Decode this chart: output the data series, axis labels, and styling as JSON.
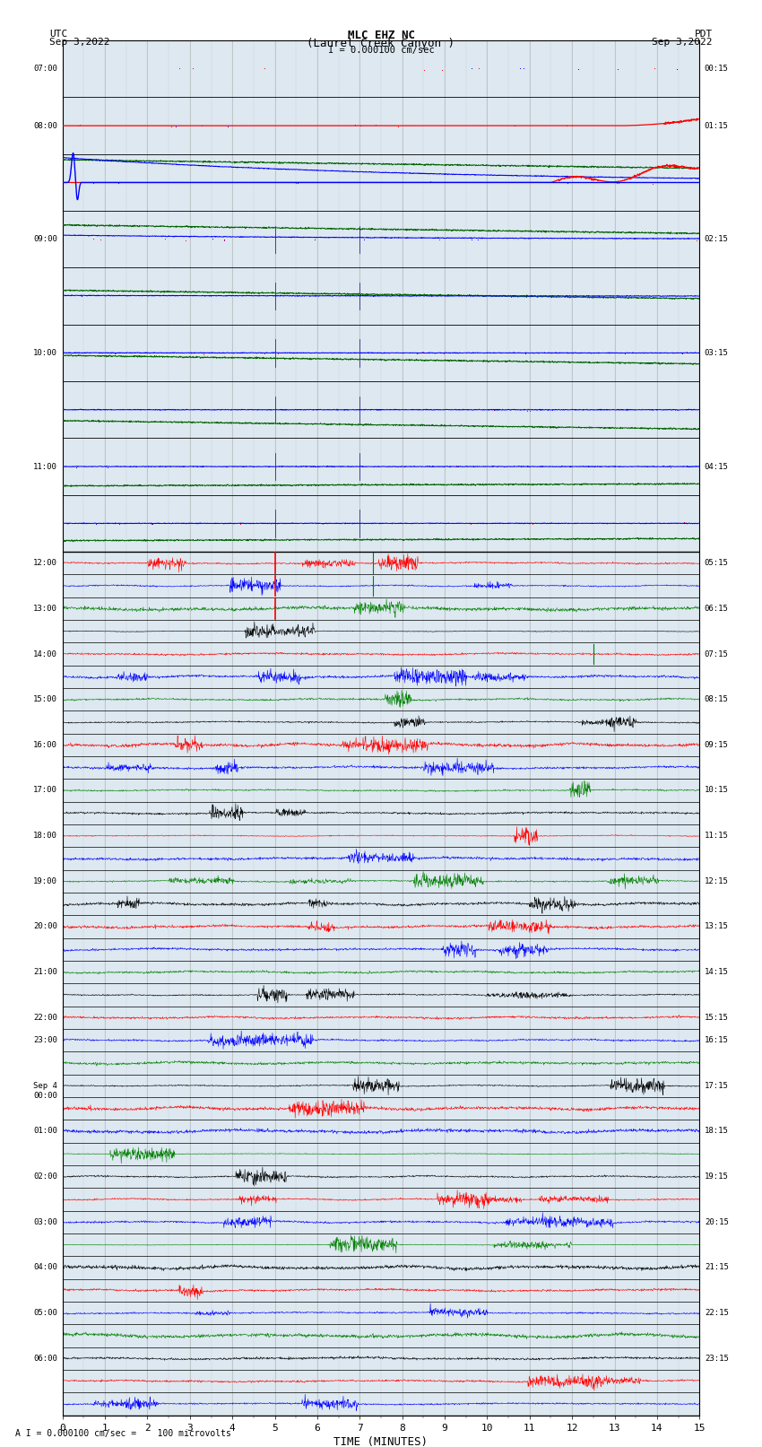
{
  "title_line1": "MLC EHZ NC",
  "title_line2": "(Laurel Creek Canyon )",
  "title_line3": "I = 0.000100 cm/sec",
  "left_header_line1": "UTC",
  "left_header_line2": "Sep 3,2022",
  "right_header_line1": "PDT",
  "right_header_line2": "Sep 3,2022",
  "xlabel": "TIME (MINUTES)",
  "footer": "A I = 0.000100 cm/sec =    100 microvolts",
  "xlim": [
    0,
    15
  ],
  "xticks": [
    0,
    1,
    2,
    3,
    4,
    5,
    6,
    7,
    8,
    9,
    10,
    11,
    12,
    13,
    14,
    15
  ],
  "bg_color": "#ffffff",
  "grid_color": "#999999",
  "axis_bg": "#dde8f0",
  "left_labels_utc": [
    "07:00",
    "",
    "",
    "",
    "08:00",
    "",
    "",
    "",
    "09:00",
    "",
    "",
    "",
    "10:00",
    "",
    "",
    "",
    "11:00",
    "",
    "",
    "",
    "12:00",
    "",
    "",
    "",
    "13:00",
    "",
    "",
    "",
    "14:00",
    "",
    "",
    "",
    "15:00",
    "",
    "",
    "",
    "16:00",
    "",
    "",
    "",
    "17:00",
    "",
    "",
    "",
    "18:00",
    "",
    "",
    "",
    "19:00",
    "",
    "",
    "",
    "20:00",
    "",
    "",
    "",
    "21:00",
    "",
    "",
    "",
    "22:00",
    "",
    "",
    "",
    "23:00",
    "",
    "",
    "",
    "Sep 4\n00:00",
    "",
    "",
    "",
    "01:00",
    "",
    "",
    "",
    "02:00",
    "",
    "",
    "",
    "03:00",
    "",
    "",
    "",
    "04:00",
    "",
    "",
    "",
    "05:00",
    "",
    "",
    "",
    "06:00",
    "",
    "",
    ""
  ],
  "right_labels_pdt": [
    "00:15",
    "",
    "",
    "",
    "01:15",
    "",
    "",
    "",
    "02:15",
    "",
    "",
    "",
    "03:15",
    "",
    "",
    "",
    "04:15",
    "",
    "",
    "",
    "05:15",
    "",
    "",
    "",
    "06:15",
    "",
    "",
    "",
    "07:15",
    "",
    "",
    "",
    "08:15",
    "",
    "",
    "",
    "09:15",
    "",
    "",
    "",
    "10:15",
    "",
    "",
    "",
    "11:15",
    "",
    "",
    "",
    "12:15",
    "",
    "",
    "",
    "13:15",
    "",
    "",
    "",
    "14:15",
    "",
    "",
    "",
    "15:15",
    "",
    "",
    "",
    "16:15",
    "",
    "",
    "",
    "17:15",
    "",
    "",
    "",
    "18:15",
    "",
    "",
    "",
    "19:15",
    "",
    "",
    "",
    "20:15",
    "",
    "",
    "",
    "21:15",
    "",
    "",
    "",
    "22:15",
    "",
    "",
    "",
    "23:15",
    "",
    "",
    ""
  ],
  "num_rows": 96,
  "big_event_rows": 9,
  "colors_cycle": [
    "black",
    "red",
    "blue",
    "green"
  ]
}
